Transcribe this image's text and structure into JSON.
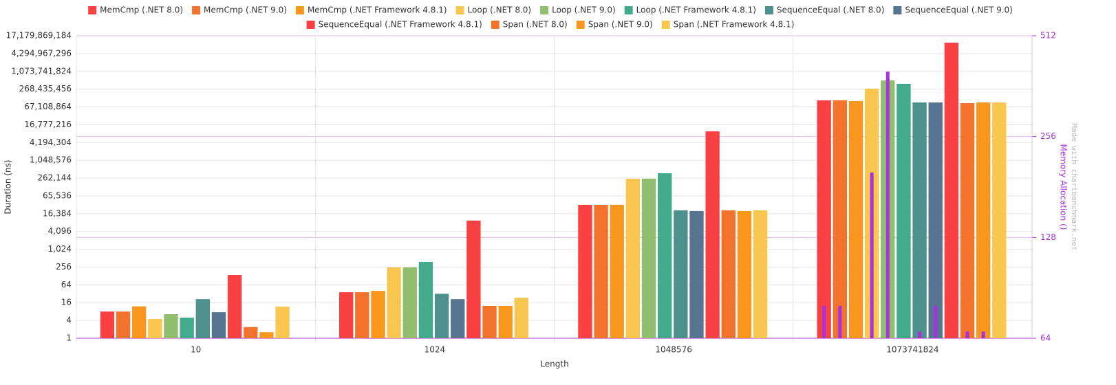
{
  "chart_data": {
    "type": "bar",
    "x_label": "Length",
    "y_label": "Duration (ns)",
    "y2_label": "Memory Allocation ()",
    "watermark": "Made with chartbenchmark.net",
    "categories": [
      "10",
      "1024",
      "1048576",
      "1073741824"
    ],
    "yscale": "log",
    "ylim": [
      1,
      17179869184
    ],
    "yticks": [
      1,
      4,
      16,
      64,
      256,
      {
        "value": 1024,
        "label": "1,024"
      },
      {
        "value": 4096,
        "label": "4,096"
      },
      {
        "value": 16384,
        "label": "16,384"
      },
      {
        "value": 65536,
        "label": "65,536"
      },
      {
        "value": 262144,
        "label": "262,144"
      },
      {
        "value": 1048576,
        "label": "1,048,576"
      },
      {
        "value": 4194304,
        "label": "4,194,304"
      },
      {
        "value": 16777216,
        "label": "16,777,216"
      },
      {
        "value": 67108864,
        "label": "67,108,864"
      },
      {
        "value": 268435456,
        "label": "268,435,456"
      },
      {
        "value": 1073741824,
        "label": "1,073,741,824"
      },
      {
        "value": 4294967296,
        "label": "4,294,967,296"
      },
      {
        "value": 17179869184,
        "label": "17,179,869,184"
      }
    ],
    "y2scale": "log",
    "y2lim": [
      64,
      512
    ],
    "y2ticks": [
      64,
      128,
      256,
      512
    ],
    "grid": true,
    "allocation_color": "#a832e0",
    "series": [
      {
        "name": "MemCmp (.NET 8.0)",
        "color": "#f94144",
        "values": [
          8,
          36,
          32768,
          112000000
        ],
        "allocations": [
          null,
          null,
          null,
          80
        ]
      },
      {
        "name": "MemCmp (.NET 9.0)",
        "color": "#f3722c",
        "values": [
          8,
          36,
          32768,
          112000000
        ],
        "allocations": [
          null,
          null,
          null,
          80
        ]
      },
      {
        "name": "MemCmp (.NET Framework 4.8.1)",
        "color": "#f8961e",
        "values": [
          12,
          40,
          32768,
          106000000
        ],
        "allocations": [
          null,
          null,
          null,
          null
        ]
      },
      {
        "name": "Loop (.NET 8.0)",
        "color": "#f9c74f",
        "values": [
          4.5,
          249,
          250000,
          280000000
        ],
        "allocations": [
          null,
          null,
          null,
          200
        ]
      },
      {
        "name": "Loop (.NET 9.0)",
        "color": "#90be6d",
        "values": [
          6.5,
          249,
          250000,
          530000000
        ],
        "allocations": [
          null,
          null,
          null,
          400
        ]
      },
      {
        "name": "Loop (.NET Framework 4.8.1)",
        "color": "#43aa8b",
        "values": [
          5,
          382,
          383000,
          406000000
        ],
        "allocations": [
          null,
          null,
          null,
          null
        ]
      },
      {
        "name": "SequenceEqual (.NET 8.0)",
        "color": "#4d908e",
        "values": [
          21,
          32,
          21200,
          95000000
        ],
        "allocations": [
          null,
          null,
          null,
          67
        ]
      },
      {
        "name": "SequenceEqual (.NET 9.0)",
        "color": "#577590",
        "values": [
          7.6,
          21,
          20200,
          95000000
        ],
        "allocations": [
          null,
          null,
          null,
          80
        ]
      },
      {
        "name": "SequenceEqual (.NET Framework 4.8.1)",
        "color": "#f94144",
        "values": [
          138,
          9600,
          10000000,
          10000000000
        ],
        "allocations": [
          null,
          null,
          null,
          null
        ]
      },
      {
        "name": "Span (.NET 8.0)",
        "color": "#f3722c",
        "values": [
          2.4,
          12.4,
          21200,
          90000000
        ],
        "allocations": [
          null,
          null,
          null,
          67
        ]
      },
      {
        "name": "Span (.NET 9.0)",
        "color": "#f8961e",
        "values": [
          1.6,
          12.4,
          20200,
          95000000
        ],
        "allocations": [
          null,
          null,
          null,
          67
        ]
      },
      {
        "name": "Span (.NET Framework 4.8.1)",
        "color": "#f9c74f",
        "values": [
          11.7,
          23.6,
          21200,
          95000000
        ],
        "allocations": [
          null,
          null,
          null,
          null
        ]
      }
    ]
  }
}
